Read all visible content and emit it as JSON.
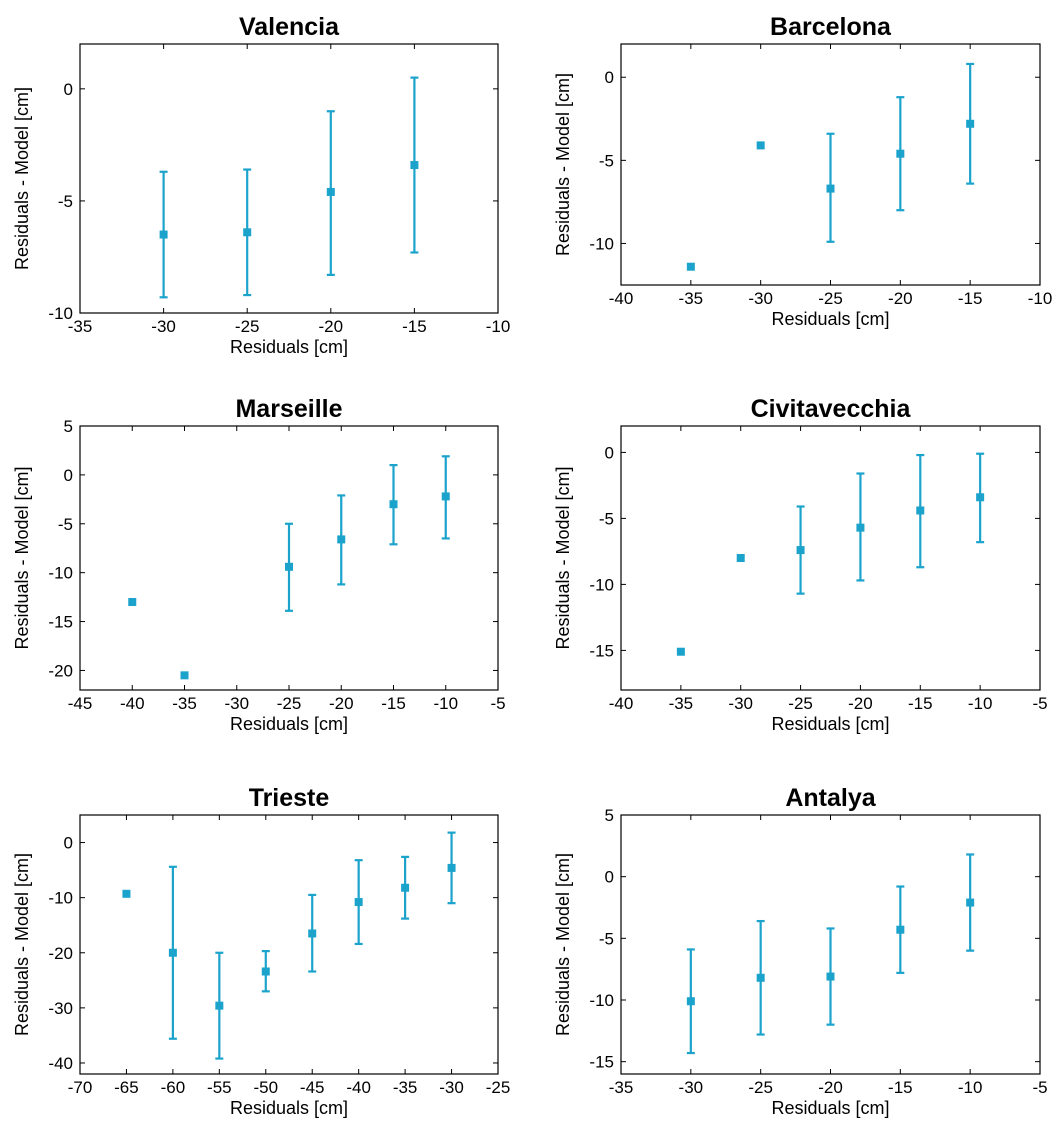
{
  "figure": {
    "marker_color": "#1ba3cc"
  },
  "chart_data": [
    {
      "type": "scatter",
      "title": "Valencia",
      "xlabel": "Residuals [cm]",
      "ylabel": "Residuals - Model [cm]",
      "xlim": [
        -35,
        -10
      ],
      "ylim": [
        -10,
        2
      ],
      "xticks": [
        -35,
        -30,
        -25,
        -20,
        -15,
        -10
      ],
      "yticks": [
        -10,
        -5,
        0
      ],
      "grid": false,
      "points": [
        {
          "x": -30,
          "y": -6.5,
          "err_low": -9.3,
          "err_high": -3.7
        },
        {
          "x": -25,
          "y": -6.4,
          "err_low": -9.2,
          "err_high": -3.6
        },
        {
          "x": -20,
          "y": -4.6,
          "err_low": -8.3,
          "err_high": -1.0
        },
        {
          "x": -15,
          "y": -3.4,
          "err_low": -7.3,
          "err_high": 0.5
        }
      ]
    },
    {
      "type": "scatter",
      "title": "Barcelona",
      "xlabel": "Residuals [cm]",
      "ylabel": "Residuals - Model [cm]",
      "xlim": [
        -40,
        -10
      ],
      "ylim": [
        -12.5,
        2
      ],
      "xticks": [
        -40,
        -35,
        -30,
        -25,
        -20,
        -15,
        -10
      ],
      "yticks": [
        -10,
        -5,
        0
      ],
      "grid": false,
      "points": [
        {
          "x": -35,
          "y": -11.4
        },
        {
          "x": -30,
          "y": -4.1
        },
        {
          "x": -25,
          "y": -6.7,
          "err_low": -9.9,
          "err_high": -3.4
        },
        {
          "x": -20,
          "y": -4.6,
          "err_low": -8.0,
          "err_high": -1.2
        },
        {
          "x": -15,
          "y": -2.8,
          "err_low": -6.4,
          "err_high": 0.8
        }
      ]
    },
    {
      "type": "scatter",
      "title": "Marseille",
      "xlabel": "Residuals [cm]",
      "ylabel": "Residuals - Model [cm]",
      "xlim": [
        -45,
        -5
      ],
      "ylim": [
        -22,
        5
      ],
      "xticks": [
        -45,
        -40,
        -35,
        -30,
        -25,
        -20,
        -15,
        -10,
        -5
      ],
      "yticks": [
        -20,
        -15,
        -10,
        -5,
        0,
        5
      ],
      "grid": false,
      "points": [
        {
          "x": -40,
          "y": -13.0
        },
        {
          "x": -35,
          "y": -20.5
        },
        {
          "x": -25,
          "y": -9.4,
          "err_low": -13.9,
          "err_high": -5.0
        },
        {
          "x": -20,
          "y": -6.6,
          "err_low": -11.2,
          "err_high": -2.1
        },
        {
          "x": -15,
          "y": -3.0,
          "err_low": -7.1,
          "err_high": 1.0
        },
        {
          "x": -10,
          "y": -2.2,
          "err_low": -6.5,
          "err_high": 1.9
        }
      ]
    },
    {
      "type": "scatter",
      "title": "Civitavecchia",
      "xlabel": "Residuals [cm]",
      "ylabel": "Residuals - Model [cm]",
      "xlim": [
        -40,
        -5
      ],
      "ylim": [
        -18,
        2
      ],
      "xticks": [
        -40,
        -35,
        -30,
        -25,
        -20,
        -15,
        -10,
        -5
      ],
      "yticks": [
        -15,
        -10,
        -5,
        0
      ],
      "grid": false,
      "points": [
        {
          "x": -35,
          "y": -15.1
        },
        {
          "x": -30,
          "y": -8.0
        },
        {
          "x": -25,
          "y": -7.4,
          "err_low": -10.7,
          "err_high": -4.1
        },
        {
          "x": -20,
          "y": -5.7,
          "err_low": -9.7,
          "err_high": -1.6
        },
        {
          "x": -15,
          "y": -4.4,
          "err_low": -8.7,
          "err_high": -0.2
        },
        {
          "x": -10,
          "y": -3.4,
          "err_low": -6.8,
          "err_high": -0.1
        }
      ]
    },
    {
      "type": "scatter",
      "title": "Trieste",
      "xlabel": "Residuals [cm]",
      "ylabel": "Residuals - Model [cm]",
      "xlim": [
        -70,
        -25
      ],
      "ylim": [
        -42,
        5
      ],
      "xticks": [
        -70,
        -65,
        -60,
        -55,
        -50,
        -45,
        -40,
        -35,
        -30,
        -25
      ],
      "yticks": [
        -40,
        -30,
        -20,
        -10,
        0
      ],
      "grid": false,
      "points": [
        {
          "x": -65,
          "y": -9.3
        },
        {
          "x": -60,
          "y": -20.0,
          "err_low": -35.6,
          "err_high": -4.4
        },
        {
          "x": -55,
          "y": -29.6,
          "err_low": -39.2,
          "err_high": -20.0
        },
        {
          "x": -50,
          "y": -23.4,
          "err_low": -27.0,
          "err_high": -19.7
        },
        {
          "x": -45,
          "y": -16.5,
          "err_low": -23.4,
          "err_high": -9.5
        },
        {
          "x": -40,
          "y": -10.8,
          "err_low": -18.4,
          "err_high": -3.2
        },
        {
          "x": -35,
          "y": -8.2,
          "err_low": -13.8,
          "err_high": -2.6
        },
        {
          "x": -30,
          "y": -4.6,
          "err_low": -11.0,
          "err_high": 1.8
        }
      ]
    },
    {
      "type": "scatter",
      "title": "Antalya",
      "xlabel": "Residuals [cm]",
      "ylabel": "Residuals - Model [cm]",
      "xlim": [
        -35,
        -5
      ],
      "ylim": [
        -16,
        5
      ],
      "xticks": [
        -35,
        -30,
        -25,
        -20,
        -15,
        -10,
        -5
      ],
      "yticks": [
        -15,
        -10,
        -5,
        0,
        5
      ],
      "grid": false,
      "points": [
        {
          "x": -30,
          "y": -10.1,
          "err_low": -14.3,
          "err_high": -5.9
        },
        {
          "x": -25,
          "y": -8.2,
          "err_low": -12.8,
          "err_high": -3.6
        },
        {
          "x": -20,
          "y": -8.1,
          "err_low": -12.0,
          "err_high": -4.2
        },
        {
          "x": -15,
          "y": -4.3,
          "err_low": -7.8,
          "err_high": -0.8
        },
        {
          "x": -10,
          "y": -2.1,
          "err_low": -6.0,
          "err_high": 1.8
        }
      ]
    }
  ]
}
